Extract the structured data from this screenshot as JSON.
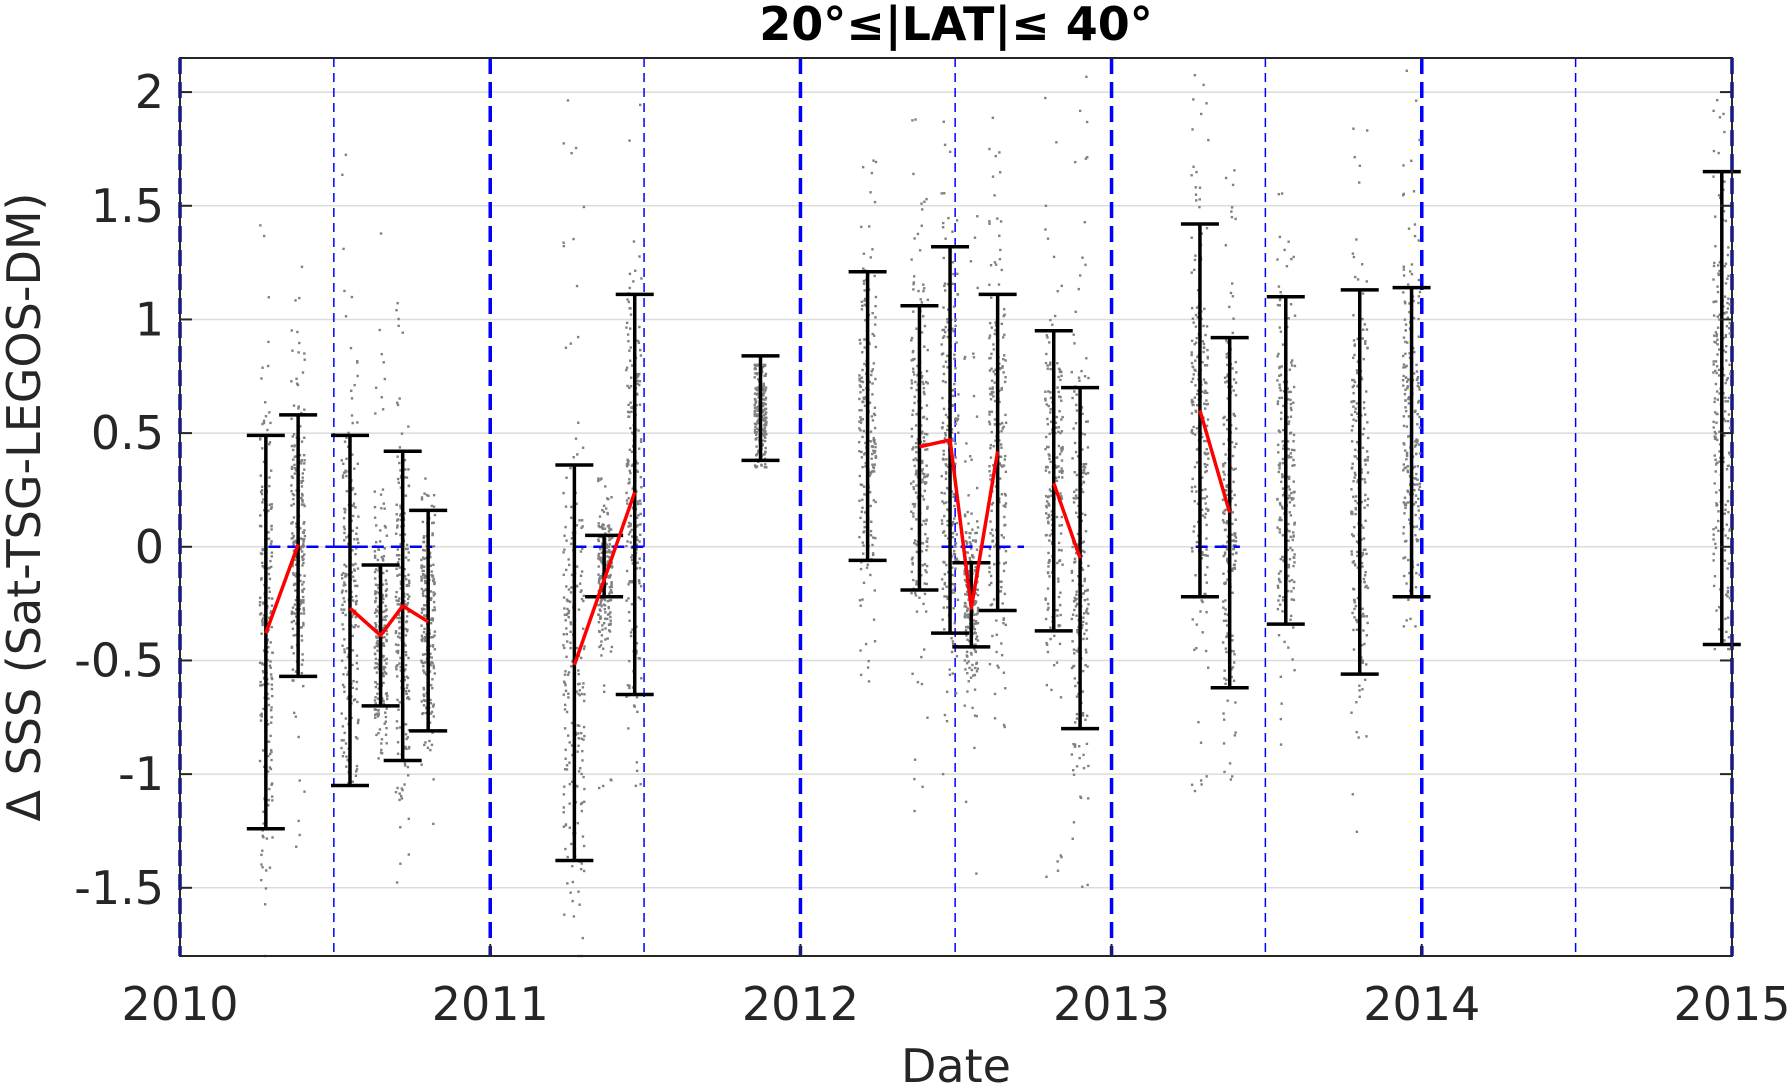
{
  "chart_data": {
    "type": "scatter",
    "title": "20°≤|LAT|≤ 40°",
    "xlabel": "Date",
    "ylabel": "Δ SSS (Sat-TSG-LEGOS-DM)",
    "xlim": [
      "2010-01-01",
      "2015-01-01"
    ],
    "ylim": [
      -1.8,
      2.15
    ],
    "xticks": [
      "2010",
      "2011",
      "2012",
      "2013",
      "2014",
      "2015"
    ],
    "yticks": [
      2,
      1.5,
      1,
      0.5,
      0,
      -0.5,
      -1,
      -1.5
    ],
    "ytick_labels": [
      "2",
      "1.5",
      "1",
      "0.5",
      "0",
      "-0.5",
      "-1",
      "-1.5"
    ],
    "grid": "horizontal",
    "colors": {
      "scatter": "#808080",
      "errorbar": "#000000",
      "mean_line": "#ff0000",
      "reference_line": "#0000ff",
      "grid": "#dcdcdc"
    },
    "year_boundaries": [
      "2010-01-01",
      "2011-01-01",
      "2012-01-01",
      "2013-01-01",
      "2014-01-01",
      "2015-01-01"
    ],
    "half_year_lines": [
      "2010-07-01",
      "2011-07-01",
      "2012-07-01",
      "2013-07-01",
      "2014-07-01"
    ],
    "zero_reference_segments": [
      {
        "x": [
          "2010-04-15",
          "2010-08-10"
        ],
        "y": 0
      },
      {
        "x": [
          "2010-07-01",
          "2010-10-25"
        ],
        "y": 0
      },
      {
        "x": [
          "2011-04-10",
          "2011-07-01"
        ],
        "y": 0
      },
      {
        "x": [
          "2012-06-15",
          "2012-09-20"
        ],
        "y": 0
      },
      {
        "x": [
          "2013-04-10",
          "2013-06-01"
        ],
        "y": 0
      }
    ],
    "error_bars": [
      {
        "x": "2010-04-12",
        "low": -1.24,
        "high": 0.49
      },
      {
        "x": "2010-05-20",
        "low": -0.57,
        "high": 0.58
      },
      {
        "x": "2010-07-20",
        "low": -1.05,
        "high": 0.49
      },
      {
        "x": "2010-08-25",
        "low": -0.7,
        "high": -0.08
      },
      {
        "x": "2010-09-20",
        "low": -0.94,
        "high": 0.42
      },
      {
        "x": "2010-10-20",
        "low": -0.81,
        "high": 0.16
      },
      {
        "x": "2011-04-10",
        "low": -1.38,
        "high": 0.36
      },
      {
        "x": "2011-05-15",
        "low": -0.22,
        "high": 0.05
      },
      {
        "x": "2011-06-20",
        "low": -0.65,
        "high": 1.11
      },
      {
        "x": "2011-11-15",
        "low": 0.38,
        "high": 0.84
      },
      {
        "x": "2012-03-20",
        "low": -0.06,
        "high": 1.21
      },
      {
        "x": "2012-05-20",
        "low": -0.19,
        "high": 1.06
      },
      {
        "x": "2012-06-25",
        "low": -0.38,
        "high": 1.32
      },
      {
        "x": "2012-07-20",
        "low": -0.44,
        "high": -0.07
      },
      {
        "x": "2012-08-20",
        "low": -0.28,
        "high": 1.11
      },
      {
        "x": "2012-10-25",
        "low": -0.37,
        "high": 0.95
      },
      {
        "x": "2012-11-25",
        "low": -0.8,
        "high": 0.7
      },
      {
        "x": "2013-04-15",
        "low": -0.22,
        "high": 1.42
      },
      {
        "x": "2013-05-20",
        "low": -0.62,
        "high": 0.92
      },
      {
        "x": "2013-07-25",
        "low": -0.34,
        "high": 1.1
      },
      {
        "x": "2013-10-20",
        "low": -0.56,
        "high": 1.13
      },
      {
        "x": "2013-12-20",
        "low": -0.22,
        "high": 1.14
      },
      {
        "x": "2014-12-20",
        "low": -0.43,
        "high": 1.65
      }
    ],
    "mean_lines": [
      {
        "x": [
          "2010-04-12",
          "2010-05-20"
        ],
        "y": [
          -0.38,
          0.01
        ]
      },
      {
        "x": [
          "2010-07-20",
          "2010-08-25",
          "2010-09-20",
          "2010-10-20"
        ],
        "y": [
          -0.27,
          -0.39,
          -0.26,
          -0.33
        ]
      },
      {
        "x": [
          "2011-04-10",
          "2011-06-20"
        ],
        "y": [
          -0.52,
          0.24
        ]
      },
      {
        "x": [
          "2012-05-20",
          "2012-06-25",
          "2012-07-20",
          "2012-08-20"
        ],
        "y": [
          0.44,
          0.47,
          -0.27,
          0.42
        ]
      },
      {
        "x": [
          "2012-10-25",
          "2012-11-25"
        ],
        "y": [
          0.28,
          -0.05
        ]
      },
      {
        "x": [
          "2013-04-15",
          "2013-05-20"
        ],
        "y": [
          0.6,
          0.15
        ]
      }
    ],
    "scatter_clusters": [
      {
        "x": [
          "2010-04-05",
          "2010-04-20"
        ],
        "y": [
          -1.8,
          1.6
        ],
        "center": -0.35,
        "spread": 0.5
      },
      {
        "x": [
          "2010-05-12",
          "2010-05-28"
        ],
        "y": [
          -1.45,
          1.3
        ],
        "center": 0.0,
        "spread": 0.35
      },
      {
        "x": [
          "2010-07-10",
          "2010-07-30"
        ],
        "y": [
          -1.05,
          1.8
        ],
        "center": -0.25,
        "spread": 0.45
      },
      {
        "x": [
          "2010-08-18",
          "2010-09-02"
        ],
        "y": [
          -1.1,
          1.45
        ],
        "center": -0.4,
        "spread": 0.25
      },
      {
        "x": [
          "2010-09-12",
          "2010-09-28"
        ],
        "y": [
          -1.75,
          1.2
        ],
        "center": -0.26,
        "spread": 0.4
      },
      {
        "x": [
          "2010-10-12",
          "2010-10-28"
        ],
        "y": [
          -1.3,
          0.3
        ],
        "center": -0.33,
        "spread": 0.28
      },
      {
        "x": [
          "2011-03-28",
          "2011-04-22"
        ],
        "y": [
          -1.8,
          2.05
        ],
        "center": -0.6,
        "spread": 0.5
      },
      {
        "x": [
          "2011-05-08",
          "2011-05-25"
        ],
        "y": [
          -1.1,
          0.3
        ],
        "center": -0.1,
        "spread": 0.15
      },
      {
        "x": [
          "2011-06-10",
          "2011-06-28"
        ],
        "y": [
          -1.1,
          2.15
        ],
        "center": 0.3,
        "spread": 0.5
      },
      {
        "x": [
          "2011-11-08",
          "2011-11-22"
        ],
        "y": [
          0.35,
          0.8
        ],
        "center": 0.6,
        "spread": 0.12
      },
      {
        "x": [
          "2012-03-10",
          "2012-03-30"
        ],
        "y": [
          -0.7,
          1.95
        ],
        "center": 0.55,
        "spread": 0.4
      },
      {
        "x": [
          "2012-05-10",
          "2012-05-30"
        ],
        "y": [
          -1.2,
          2.0
        ],
        "center": 0.45,
        "spread": 0.4
      },
      {
        "x": [
          "2012-06-15",
          "2012-07-05"
        ],
        "y": [
          -1.0,
          2.0
        ],
        "center": 0.45,
        "spread": 0.5
      },
      {
        "x": [
          "2012-07-12",
          "2012-07-28"
        ],
        "y": [
          -1.6,
          1.6
        ],
        "center": -0.25,
        "spread": 0.2
      },
      {
        "x": [
          "2012-08-10",
          "2012-08-30"
        ],
        "y": [
          -0.85,
          1.95
        ],
        "center": 0.4,
        "spread": 0.45
      },
      {
        "x": [
          "2012-10-15",
          "2012-11-05"
        ],
        "y": [
          -1.55,
          2.0
        ],
        "center": 0.3,
        "spread": 0.4
      },
      {
        "x": [
          "2012-11-15",
          "2012-12-05"
        ],
        "y": [
          -1.55,
          2.1
        ],
        "center": -0.05,
        "spread": 0.45
      },
      {
        "x": [
          "2013-04-05",
          "2013-04-25"
        ],
        "y": [
          -1.1,
          2.1
        ],
        "center": 0.6,
        "spread": 0.5
      },
      {
        "x": [
          "2013-05-12",
          "2013-05-28"
        ],
        "y": [
          -1.15,
          1.95
        ],
        "center": 0.15,
        "spread": 0.45
      },
      {
        "x": [
          "2013-07-15",
          "2013-08-05"
        ],
        "y": [
          -0.9,
          1.65
        ],
        "center": 0.38,
        "spread": 0.4
      },
      {
        "x": [
          "2013-10-10",
          "2013-10-30"
        ],
        "y": [
          -1.7,
          2.0
        ],
        "center": 0.28,
        "spread": 0.45
      },
      {
        "x": [
          "2013-12-10",
          "2013-12-30"
        ],
        "y": [
          -0.35,
          2.15
        ],
        "center": 0.45,
        "spread": 0.4
      },
      {
        "x": [
          "2014-12-10",
          "2014-12-30"
        ],
        "y": [
          -0.45,
          2.1
        ],
        "center": 0.6,
        "spread": 0.5
      }
    ]
  }
}
